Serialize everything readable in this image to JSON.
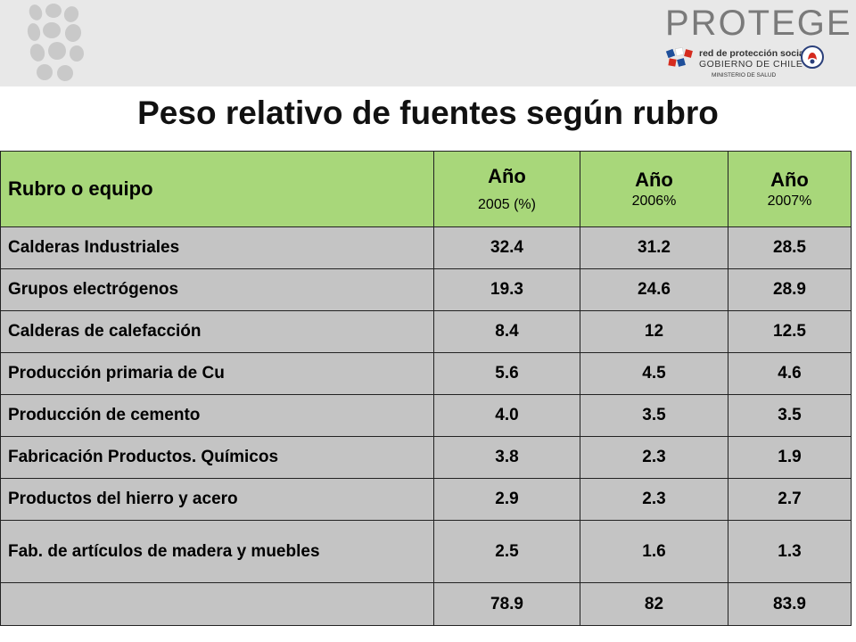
{
  "header": {
    "logo_left": "leaf-cluster-logo",
    "brand": "PROTEGE",
    "gov_line1": "red de protección social",
    "gov_line2": "GOBIERNO DE CHILE",
    "gov_line3": "MINISTERIO DE SALUD",
    "colors": {
      "band": "#e8e8e8",
      "header_row": "#a8d77a",
      "body_rows": "#c4c4c4"
    }
  },
  "title": "Peso relativo de fuentes según rubro",
  "table": {
    "headers": [
      {
        "main": "Rubro o equipo",
        "sub": ""
      },
      {
        "main": "Año",
        "sub": "2005 (%)"
      },
      {
        "main": "Año",
        "sub": "2006%"
      },
      {
        "main": "Año",
        "sub": "2007%"
      }
    ],
    "rows": [
      [
        "Calderas Industriales",
        "32.4",
        "31.2",
        "28.5"
      ],
      [
        "Grupos electrógenos",
        "19.3",
        "24.6",
        "28.9"
      ],
      [
        "Calderas de calefacción",
        "8.4",
        "12",
        "12.5"
      ],
      [
        "Producción primaria de Cu",
        "5.6",
        "4.5",
        "4.6"
      ],
      [
        "Producción de cemento",
        "4.0",
        "3.5",
        "3.5"
      ],
      [
        "Fabricación Productos. Químicos",
        "3.8",
        "2.3",
        "1.9"
      ],
      [
        "Productos del hierro y acero",
        "2.9",
        "2.3",
        "2.7"
      ],
      [
        "Fab. de artículos de madera y muebles",
        "2.5",
        "1.6",
        "1.3"
      ]
    ],
    "totals": [
      "",
      "78.9",
      "82",
      "83.9"
    ]
  }
}
